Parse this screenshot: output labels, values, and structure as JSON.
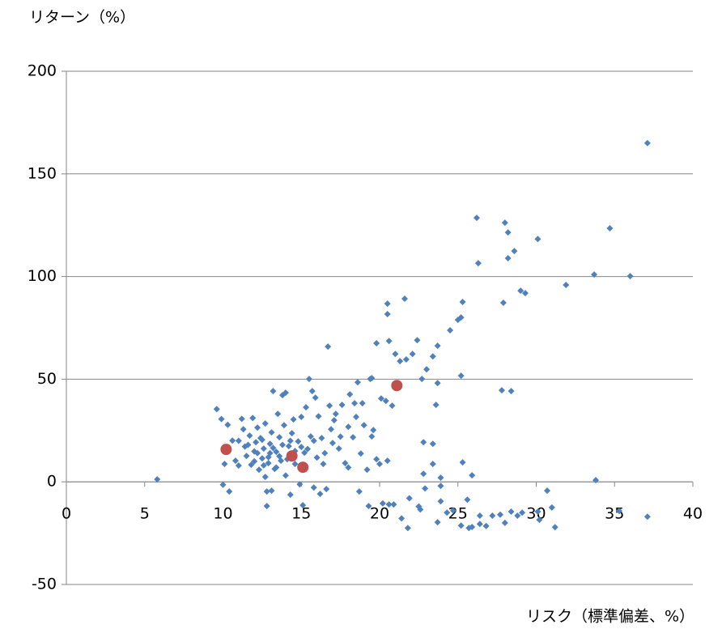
{
  "chart_data": {
    "type": "scatter",
    "y_label": "リターン（%）",
    "x_label": "リスク（標準偏差、%）",
    "xlim": [
      0,
      40
    ],
    "xticks": [
      0,
      5,
      10,
      15,
      20,
      25,
      30,
      35,
      40
    ],
    "ylim": [
      -50,
      200
    ],
    "yticks": [
      -50,
      0,
      50,
      100,
      150,
      200
    ],
    "grid": true,
    "series": [
      {
        "color": "#4f81bd",
        "marker": "diamond",
        "x": [
          37.1,
          34.7,
          26.2,
          28.0,
          28.2,
          30.1,
          28.6,
          28.2,
          26.3,
          33.7,
          36.0,
          31.9,
          29.0,
          29.3,
          27.9,
          21.6,
          20.5,
          25.3,
          20.5,
          25.2,
          25.0,
          24.5,
          22.4,
          20.6,
          19.8,
          16.7,
          23.7,
          23.4,
          21.0,
          22.1,
          21.3,
          21.7,
          23.0,
          25.2,
          15.5,
          19.5,
          22.7,
          23.7,
          23.6,
          27.8,
          28.4,
          20.1,
          20.4,
          20.8,
          9.6,
          9.9,
          10.3,
          10.0,
          10.4,
          10.1,
          10.6,
          10.8,
          11.0,
          11.2,
          11.3,
          11.4,
          11.5,
          11.7,
          11.8,
          11.9,
          12.0,
          12.1,
          12.2,
          12.3,
          12.4,
          12.5,
          12.6,
          12.7,
          12.7,
          12.8,
          12.8,
          12.9,
          13.0,
          13.1,
          13.1,
          13.2,
          13.3,
          13.4,
          13.5,
          13.6,
          13.7,
          13.8,
          13.9,
          14.0,
          14.0,
          14.2,
          14.3,
          14.4,
          14.5,
          14.6,
          14.8,
          14.9,
          15.0,
          15.1,
          15.2,
          15.3,
          15.6,
          15.7,
          15.8,
          15.9,
          16.0,
          16.1,
          16.2,
          16.3,
          16.4,
          16.6,
          16.8,
          16.9,
          17.0,
          17.2,
          17.4,
          17.6,
          17.8,
          18.0,
          18.1,
          18.3,
          18.4,
          18.5,
          18.6,
          18.7,
          18.8,
          18.9,
          19.0,
          19.2,
          19.4,
          19.5,
          19.6,
          19.8,
          20.0,
          19.3,
          20.5,
          20.9,
          11.0,
          11.6,
          12.0,
          12.2,
          12.5,
          12.6,
          12.9,
          13.0,
          13.2,
          13.4,
          13.6,
          13.8,
          14.1,
          14.3,
          14.6,
          15.0,
          15.4,
          15.8,
          16.5,
          17.5,
          18.0,
          17.1,
          5.8,
          21.4,
          21.8,
          22.6,
          22.9,
          22.8,
          23.4,
          23.4,
          22.8,
          23.9,
          23.9,
          23.9,
          23.7,
          24.3,
          24.7,
          25.3,
          25.9,
          25.6,
          25.2,
          25.7,
          25.9,
          26.4,
          26.4,
          26.8,
          27.2,
          27.7,
          28.0,
          28.4,
          28.8,
          29.1,
          30.1,
          30.2,
          30.7,
          31.0,
          31.2,
          33.8,
          35.3,
          37.1,
          20.2,
          20.6,
          21.9,
          22.5
        ],
        "values": [
          165,
          123.5,
          128.6,
          126.2,
          121.5,
          118.3,
          112.4,
          108.9,
          106.5,
          101,
          100.2,
          95.9,
          93.1,
          91.9,
          87.2,
          89.2,
          86.8,
          87.6,
          81.7,
          80.1,
          78.9,
          73.8,
          69.0,
          68.6,
          67.5,
          65.9,
          66.3,
          61.1,
          62.3,
          62.3,
          58.8,
          59.6,
          54.8,
          51.7,
          50.1,
          50.5,
          50.1,
          48.1,
          37.5,
          44.6,
          44.2,
          40.6,
          39.4,
          37.1,
          35.4,
          30.6,
          27.8,
          -1.4,
          -4.7,
          8.7,
          20.1,
          10.3,
          7.9,
          30.7,
          25.6,
          17.2,
          12.6,
          22.5,
          8.3,
          31.1,
          14.8,
          19.3,
          26.4,
          5.9,
          21.3,
          11.4,
          16.2,
          28.4,
          2.4,
          -4.7,
          -11.8,
          9.1,
          18.5,
          24.1,
          -4.3,
          44.2,
          6.3,
          14.6,
          33.1,
          21.7,
          10.3,
          42.2,
          27.6,
          3.1,
          43.4,
          17.4,
          -6.3,
          23.7,
          30.4,
          8.7,
          19.7,
          -1.2,
          31.6,
          -11.4,
          14.2,
          36.3,
          22.1,
          44.2,
          -2.8,
          41.0,
          11.8,
          31.9,
          -5.9,
          21.3,
          8.7,
          -3.5,
          37.1,
          25.6,
          18.9,
          33.1,
          16.2,
          37.5,
          9.1,
          26.8,
          42.6,
          21.7,
          38.3,
          31.6,
          48.5,
          -4.7,
          13.8,
          38.3,
          27.6,
          5.9,
          50.1,
          22.1,
          25.2,
          11.0,
          8.7,
          -11.8,
          10.3,
          -11.0,
          20.0,
          18.0,
          10.0,
          14.0,
          20.5,
          8.0,
          12.0,
          14.0,
          16.5,
          7.0,
          12.5,
          18.0,
          11.0,
          20.0,
          15.0,
          17.0,
          16.0,
          20.0,
          14.0,
          22.0,
          7.0,
          30.0,
          1.2,
          -17.8,
          -22.5,
          -13.5,
          -3.2,
          3.9,
          8.7,
          18.5,
          19.3,
          2.0,
          -2.0,
          -9.5,
          -19.7,
          -15.0,
          -14.0,
          9.5,
          3.2,
          -8.7,
          -21.3,
          -22.5,
          -22.0,
          -16.5,
          -20.5,
          -21.5,
          -16.5,
          -16.0,
          -20.0,
          -14.5,
          -16.5,
          -15.0,
          -14.5,
          -18.5,
          -4.3,
          -12.5,
          -22.1,
          0.8,
          -14.2,
          -17.0,
          -10.5,
          -11.0,
          -8.0,
          -12.0
        ]
      },
      {
        "color": "#c0504d",
        "marker": "circle",
        "x": [
          10.2,
          14.4,
          15.1,
          21.1
        ],
        "values": [
          15.8,
          12.6,
          7.1,
          46.9
        ]
      }
    ]
  }
}
